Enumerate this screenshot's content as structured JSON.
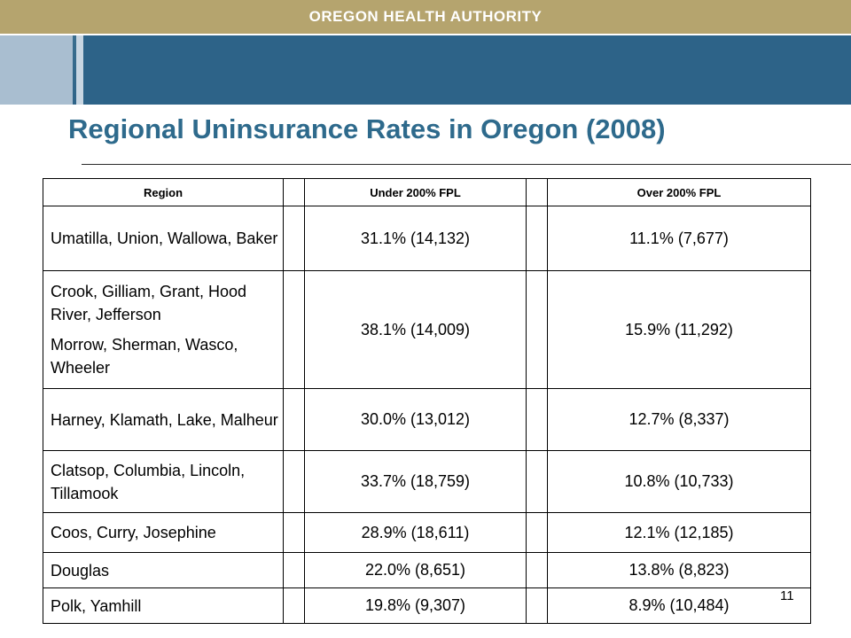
{
  "header": {
    "org_name": "OREGON HEALTH AUTHORITY"
  },
  "slide": {
    "title": "Regional Uninsurance Rates in Oregon (2008)",
    "page_number": "11"
  },
  "table": {
    "columns": [
      "Region",
      "Under 200% FPL",
      "Over 200% FPL"
    ],
    "rows": [
      {
        "region": [
          "Umatilla, Union, Wallowa, Baker"
        ],
        "under": "31.1% (14,132)",
        "over": "11.1% (7,677)"
      },
      {
        "region": [
          "Crook, Gilliam, Grant, Hood River, Jefferson",
          "Morrow, Sherman, Wasco, Wheeler"
        ],
        "under": "38.1% (14,009)",
        "over": "15.9% (11,292)"
      },
      {
        "region": [
          "Harney, Klamath, Lake, Malheur"
        ],
        "under": "30.0% (13,012)",
        "over": "12.7% (8,337)"
      },
      {
        "region": [
          "Clatsop, Columbia, Lincoln, Tillamook"
        ],
        "under": "33.7% (18,759)",
        "over": "10.8% (10,733)"
      },
      {
        "region": [
          "Coos, Curry, Josephine"
        ],
        "under": "28.9% (18,611)",
        "over": "12.1% (12,185)"
      },
      {
        "region": [
          "Douglas"
        ],
        "under": "22.0% (8,651)",
        "over": "13.8% (8,823)"
      },
      {
        "region": [
          "Polk, Yamhill"
        ],
        "under": "19.8% (9,307)",
        "over": "8.9% (10,484)"
      }
    ]
  },
  "colors": {
    "header_gold": "#b5a46e",
    "header_blue": "#2d6388",
    "title_blue": "#2e6a8c"
  }
}
